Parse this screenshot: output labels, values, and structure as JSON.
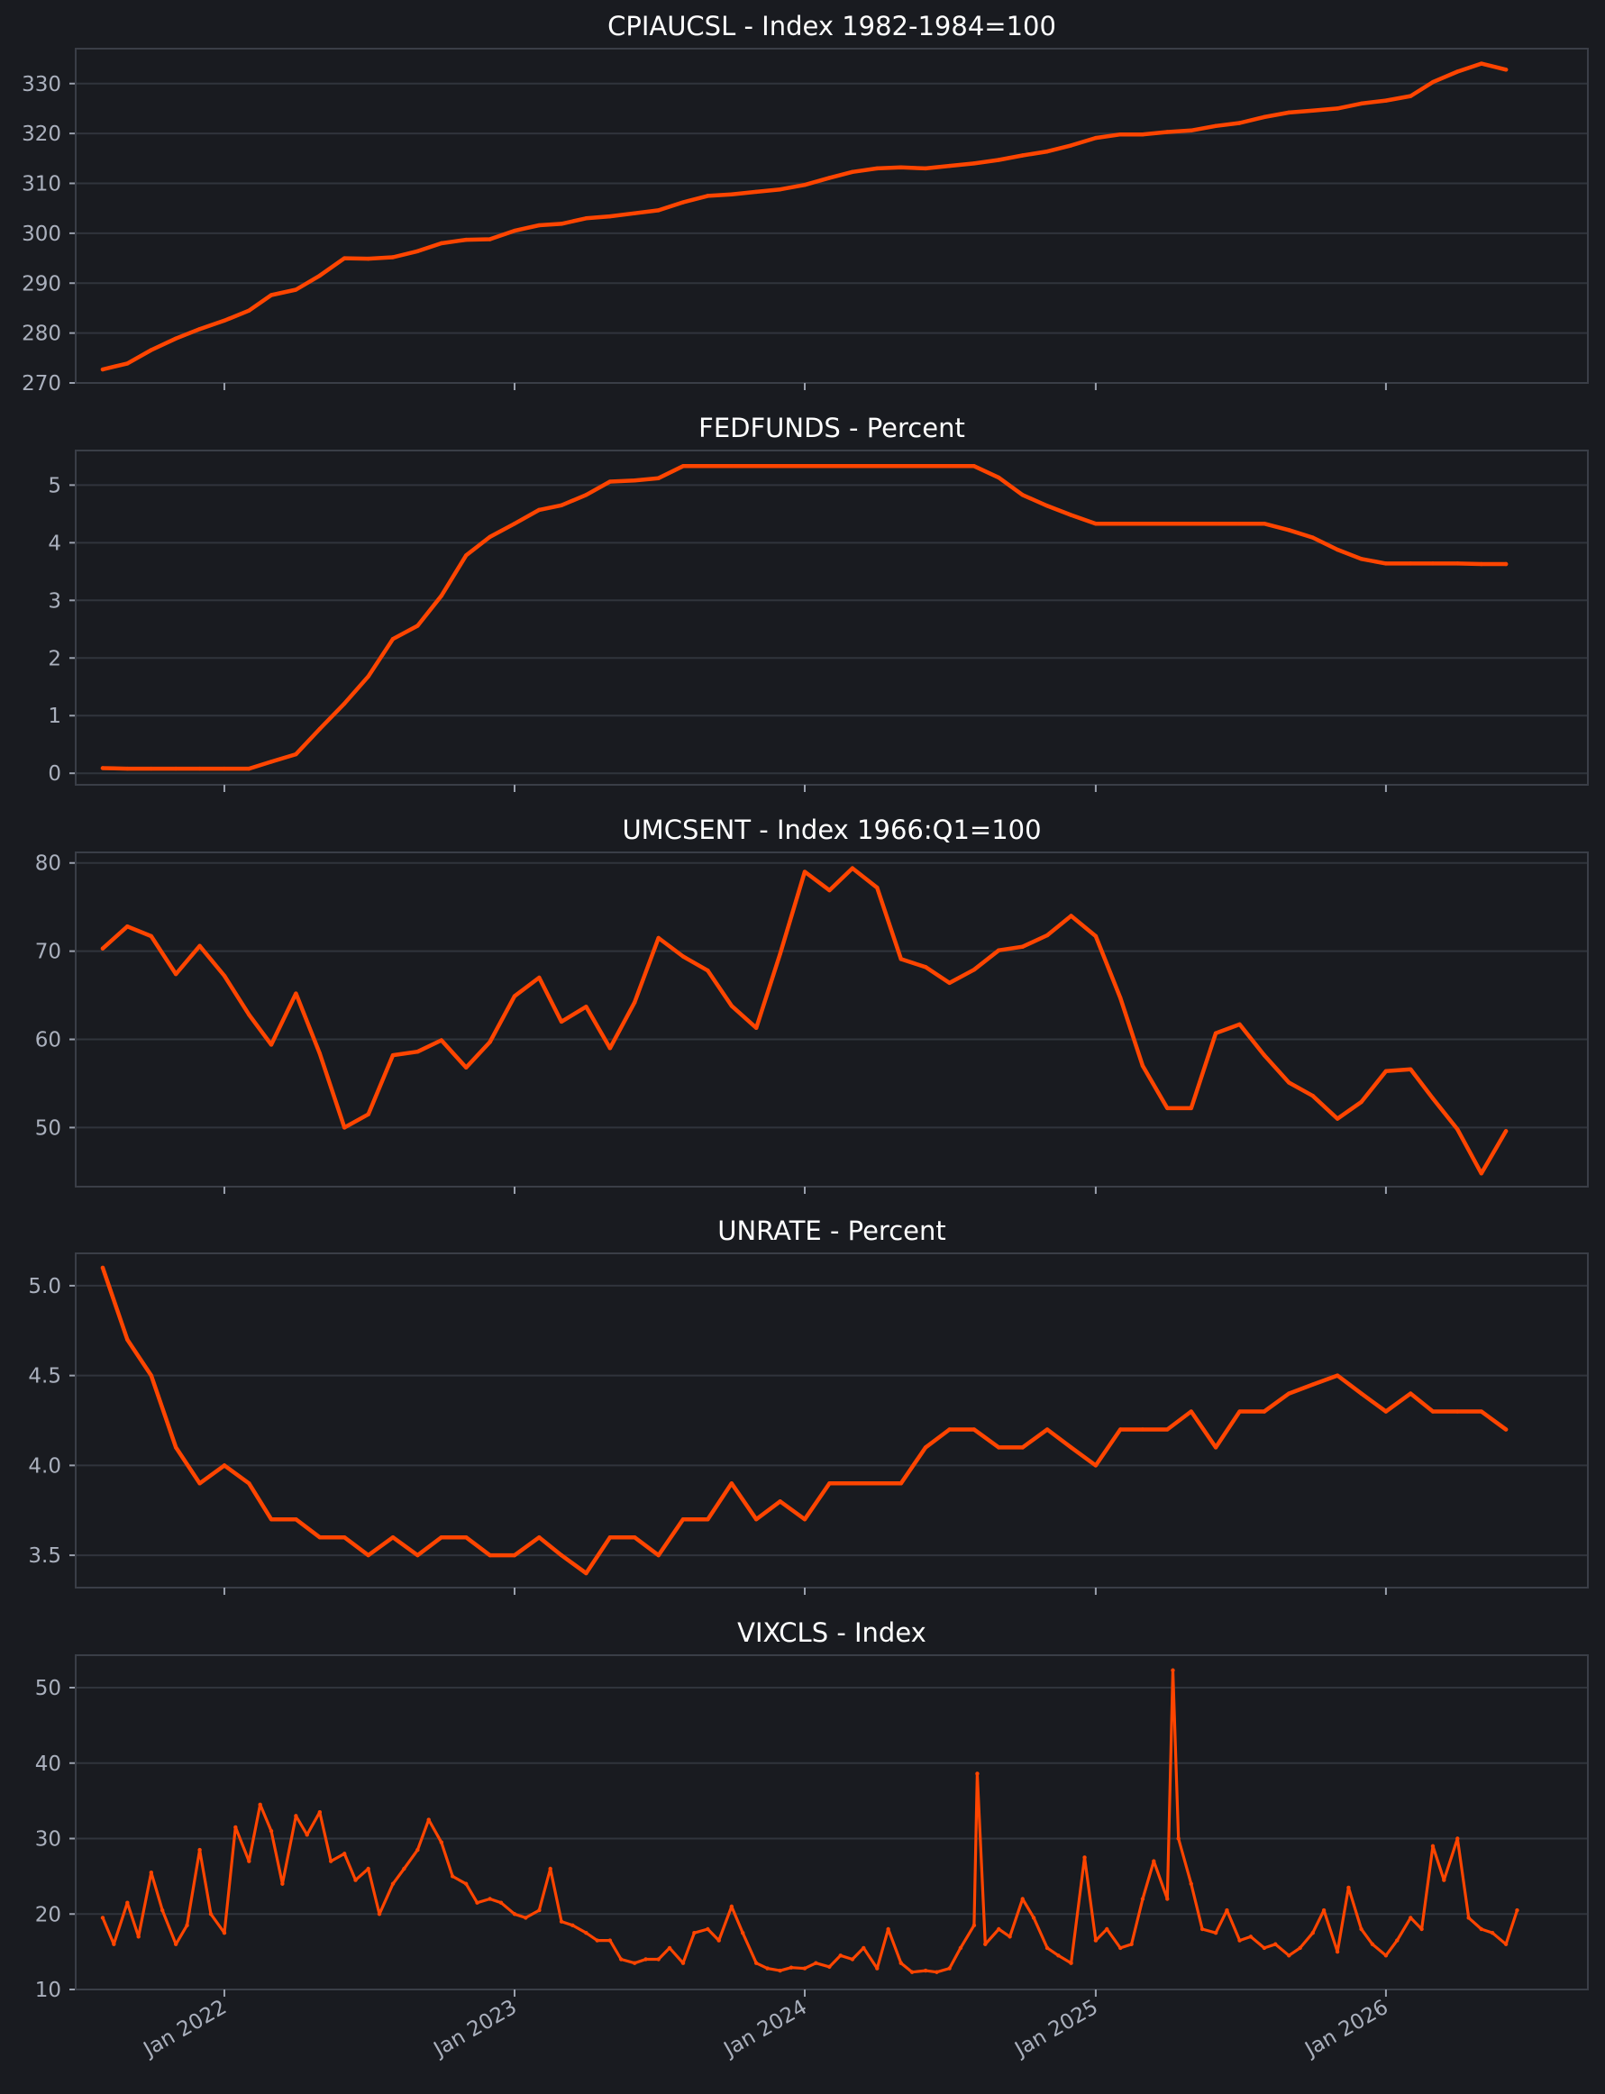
{
  "chart_data": [
    {
      "type": "line",
      "title": "CPIAUCSL - Index 1982-1984=100",
      "xlabel": "",
      "ylabel": "",
      "ylim": [
        270,
        337
      ],
      "yticks": [
        270,
        280,
        290,
        300,
        310,
        320,
        330
      ],
      "ytick_labels": [
        "270",
        "280",
        "290",
        "300",
        "310",
        "320",
        "330"
      ],
      "xticks": [
        "2022-01-01",
        "2023-01-01",
        "2024-01-01",
        "2025-01-01",
        "2026-01-01"
      ],
      "xtick_labels": [],
      "color": "#ff4500",
      "grid": true,
      "series": [
        {
          "x": [
            "2021-08-01",
            "2021-09-01",
            "2021-10-01",
            "2021-11-01",
            "2021-12-01",
            "2022-01-01",
            "2022-02-01",
            "2022-03-01",
            "2022-04-01",
            "2022-05-01",
            "2022-06-01",
            "2022-07-01",
            "2022-08-01",
            "2022-09-01",
            "2022-10-01",
            "2022-11-01",
            "2022-12-01",
            "2023-01-01",
            "2023-02-01",
            "2023-03-01",
            "2023-04-01",
            "2023-05-01",
            "2023-06-01",
            "2023-07-01",
            "2023-08-01",
            "2023-09-01",
            "2023-10-01",
            "2023-11-01",
            "2023-12-01",
            "2024-01-01",
            "2024-02-01",
            "2024-03-01",
            "2024-04-01",
            "2024-05-01",
            "2024-06-01",
            "2024-07-01",
            "2024-08-01",
            "2024-09-01",
            "2024-10-01",
            "2024-11-01",
            "2024-12-01",
            "2025-01-01",
            "2025-02-01",
            "2025-03-01",
            "2025-04-01",
            "2025-05-01",
            "2025-06-01",
            "2025-07-01",
            "2025-08-01",
            "2025-09-01",
            "2025-10-01",
            "2025-11-01",
            "2025-12-01",
            "2026-01-01",
            "2026-02-01",
            "2026-03-01",
            "2026-04-01",
            "2026-05-01",
            "2026-06-01"
          ],
          "values": [
            272.7,
            273.9,
            276.6,
            278.9,
            280.8,
            282.5,
            284.5,
            287.6,
            288.7,
            291.5,
            295.0,
            294.9,
            295.2,
            296.4,
            298.0,
            298.7,
            298.8,
            300.5,
            301.6,
            301.9,
            303.0,
            303.4,
            304.0,
            304.6,
            306.2,
            307.5,
            307.8,
            308.3,
            308.8,
            309.7,
            311.1,
            312.3,
            313.0,
            313.2,
            313.0,
            313.5,
            314.0,
            314.7,
            315.6,
            316.4,
            317.6,
            319.1,
            319.8,
            319.8,
            320.3,
            320.6,
            321.5,
            322.1,
            323.3,
            324.2,
            324.6,
            325.0,
            326.0,
            326.6,
            327.5,
            330.3,
            332.4,
            334.0,
            332.8
          ]
        }
      ]
    },
    {
      "type": "line",
      "title": "FEDFUNDS - Percent",
      "xlabel": "",
      "ylabel": "",
      "ylim": [
        -0.2,
        5.6
      ],
      "yticks": [
        0,
        1,
        2,
        3,
        4,
        5
      ],
      "ytick_labels": [
        "0",
        "1",
        "2",
        "3",
        "4",
        "5"
      ],
      "xticks": [
        "2022-01-01",
        "2023-01-01",
        "2024-01-01",
        "2025-01-01",
        "2026-01-01"
      ],
      "xtick_labels": [],
      "color": "#ff4500",
      "grid": true,
      "series": [
        {
          "x": [
            "2021-08-01",
            "2021-09-01",
            "2021-10-01",
            "2021-11-01",
            "2021-12-01",
            "2022-01-01",
            "2022-02-01",
            "2022-03-01",
            "2022-04-01",
            "2022-05-01",
            "2022-06-01",
            "2022-07-01",
            "2022-08-01",
            "2022-09-01",
            "2022-10-01",
            "2022-11-01",
            "2022-12-01",
            "2023-01-01",
            "2023-02-01",
            "2023-03-01",
            "2023-04-01",
            "2023-05-01",
            "2023-06-01",
            "2023-07-01",
            "2023-08-01",
            "2023-09-01",
            "2023-10-01",
            "2023-11-01",
            "2023-12-01",
            "2024-01-01",
            "2024-02-01",
            "2024-03-01",
            "2024-04-01",
            "2024-05-01",
            "2024-06-01",
            "2024-07-01",
            "2024-08-01",
            "2024-09-01",
            "2024-10-01",
            "2024-11-01",
            "2024-12-01",
            "2025-01-01",
            "2025-02-01",
            "2025-03-01",
            "2025-04-01",
            "2025-05-01",
            "2025-06-01",
            "2025-07-01",
            "2025-08-01",
            "2025-09-01",
            "2025-10-01",
            "2025-11-01",
            "2025-12-01",
            "2026-01-01",
            "2026-02-01",
            "2026-03-01",
            "2026-04-01",
            "2026-05-01",
            "2026-06-01"
          ],
          "values": [
            0.09,
            0.08,
            0.08,
            0.08,
            0.08,
            0.08,
            0.08,
            0.2,
            0.33,
            0.77,
            1.21,
            1.68,
            2.33,
            2.56,
            3.08,
            3.78,
            4.1,
            4.33,
            4.57,
            4.65,
            4.83,
            5.06,
            5.08,
            5.12,
            5.33,
            5.33,
            5.33,
            5.33,
            5.33,
            5.33,
            5.33,
            5.33,
            5.33,
            5.33,
            5.33,
            5.33,
            5.33,
            5.13,
            4.83,
            4.64,
            4.48,
            4.33,
            4.33,
            4.33,
            4.33,
            4.33,
            4.33,
            4.33,
            4.33,
            4.22,
            4.09,
            3.88,
            3.72,
            3.64,
            3.64,
            3.64,
            3.64,
            3.63,
            3.63
          ]
        }
      ]
    },
    {
      "type": "line",
      "title": "UMCSENT - Index 1966:Q1=100",
      "xlabel": "",
      "ylabel": "",
      "ylim": [
        43.3,
        81.2
      ],
      "yticks": [
        50,
        60,
        70,
        80
      ],
      "ytick_labels": [
        "50",
        "60",
        "70",
        "80"
      ],
      "xticks": [
        "2022-01-01",
        "2023-01-01",
        "2024-01-01",
        "2025-01-01",
        "2026-01-01"
      ],
      "xtick_labels": [],
      "color": "#ff4500",
      "grid": true,
      "series": [
        {
          "x": [
            "2021-08-01",
            "2021-09-01",
            "2021-10-01",
            "2021-11-01",
            "2021-12-01",
            "2022-01-01",
            "2022-02-01",
            "2022-03-01",
            "2022-04-01",
            "2022-05-01",
            "2022-06-01",
            "2022-07-01",
            "2022-08-01",
            "2022-09-01",
            "2022-10-01",
            "2022-11-01",
            "2022-12-01",
            "2023-01-01",
            "2023-02-01",
            "2023-03-01",
            "2023-04-01",
            "2023-05-01",
            "2023-06-01",
            "2023-07-01",
            "2023-08-01",
            "2023-09-01",
            "2023-10-01",
            "2023-11-01",
            "2023-12-01",
            "2024-01-01",
            "2024-02-01",
            "2024-03-01",
            "2024-04-01",
            "2024-05-01",
            "2024-06-01",
            "2024-07-01",
            "2024-08-01",
            "2024-09-01",
            "2024-10-01",
            "2024-11-01",
            "2024-12-01",
            "2025-01-01",
            "2025-02-01",
            "2025-03-01",
            "2025-04-01",
            "2025-05-01",
            "2025-06-01",
            "2025-07-01",
            "2025-08-01",
            "2025-09-01",
            "2025-10-01",
            "2025-11-01",
            "2025-12-01",
            "2026-01-01",
            "2026-02-01",
            "2026-03-01",
            "2026-04-01",
            "2026-05-01",
            "2026-06-01"
          ],
          "values": [
            70.3,
            72.8,
            71.7,
            67.4,
            70.6,
            67.2,
            62.8,
            59.4,
            65.2,
            58.4,
            50.0,
            51.5,
            58.2,
            58.6,
            59.9,
            56.8,
            59.7,
            64.9,
            67.0,
            62.0,
            63.7,
            59.0,
            64.2,
            71.5,
            69.4,
            67.8,
            63.8,
            61.3,
            69.7,
            79.0,
            76.9,
            79.4,
            77.2,
            69.1,
            68.2,
            66.4,
            67.9,
            70.1,
            70.5,
            71.8,
            74.0,
            71.7,
            64.7,
            57.0,
            52.2,
            52.2,
            60.7,
            61.7,
            58.2,
            55.1,
            53.6,
            51.0,
            52.9,
            56.4,
            56.6,
            53.3,
            49.8,
            44.8,
            49.6
          ]
        }
      ]
    },
    {
      "type": "line",
      "title": "UNRATE - Percent",
      "xlabel": "",
      "ylabel": "",
      "ylim": [
        3.32,
        5.18
      ],
      "yticks": [
        3.5,
        4.0,
        4.5,
        5.0
      ],
      "ytick_labels": [
        "3.5",
        "4.0",
        "4.5",
        "5.0"
      ],
      "xticks": [
        "2022-01-01",
        "2023-01-01",
        "2024-01-01",
        "2025-01-01",
        "2026-01-01"
      ],
      "xtick_labels": [],
      "color": "#ff4500",
      "grid": true,
      "series": [
        {
          "x": [
            "2021-08-01",
            "2021-09-01",
            "2021-10-01",
            "2021-11-01",
            "2021-12-01",
            "2022-01-01",
            "2022-02-01",
            "2022-03-01",
            "2022-04-01",
            "2022-05-01",
            "2022-06-01",
            "2022-07-01",
            "2022-08-01",
            "2022-09-01",
            "2022-10-01",
            "2022-11-01",
            "2022-12-01",
            "2023-01-01",
            "2023-02-01",
            "2023-03-01",
            "2023-04-01",
            "2023-05-01",
            "2023-06-01",
            "2023-07-01",
            "2023-08-01",
            "2023-09-01",
            "2023-10-01",
            "2023-11-01",
            "2023-12-01",
            "2024-01-01",
            "2024-02-01",
            "2024-03-01",
            "2024-04-01",
            "2024-05-01",
            "2024-06-01",
            "2024-07-01",
            "2024-08-01",
            "2024-09-01",
            "2024-10-01",
            "2024-11-01",
            "2024-12-01",
            "2025-01-01",
            "2025-02-01",
            "2025-03-01",
            "2025-04-01",
            "2025-05-01",
            "2025-06-01",
            "2025-07-01",
            "2025-08-01",
            "2025-09-01",
            "2025-10-01",
            "2025-11-01",
            "2025-12-01",
            "2026-01-01",
            "2026-02-01",
            "2026-03-01",
            "2026-04-01",
            "2026-05-01",
            "2026-06-01"
          ],
          "values": [
            5.1,
            4.7,
            4.5,
            4.1,
            3.9,
            4.0,
            3.9,
            3.7,
            3.7,
            3.6,
            3.6,
            3.5,
            3.6,
            3.5,
            3.6,
            3.6,
            3.5,
            3.5,
            3.6,
            3.5,
            3.4,
            3.6,
            3.6,
            3.5,
            3.7,
            3.7,
            3.9,
            3.7,
            3.8,
            3.7,
            3.9,
            3.9,
            3.9,
            3.9,
            4.1,
            4.2,
            4.2,
            4.1,
            4.1,
            4.2,
            4.1,
            4.0,
            4.2,
            4.2,
            4.2,
            4.3,
            4.1,
            4.3,
            4.3,
            4.4,
            4.45,
            4.5,
            4.4,
            4.3,
            4.4,
            4.3,
            4.3,
            4.3,
            4.2
          ]
        }
      ]
    },
    {
      "type": "line",
      "title": "VIXCLS - Index",
      "xlabel": "",
      "ylabel": "",
      "ylim": [
        10,
        54.3
      ],
      "yticks": [
        10,
        20,
        30,
        40,
        50
      ],
      "ytick_labels": [
        "10",
        "20",
        "30",
        "40",
        "50"
      ],
      "xticks": [
        "2022-01-01",
        "2023-01-01",
        "2024-01-01",
        "2025-01-01",
        "2026-01-01"
      ],
      "xtick_labels": [
        "Jan 2022",
        "Jan 2023",
        "Jan 2024",
        "Jan 2025",
        "Jan 2026"
      ],
      "color": "#ff4500",
      "grid": true,
      "series": [
        {
          "x": [
            "2021-08-01",
            "2021-08-15",
            "2021-09-01",
            "2021-09-15",
            "2021-10-01",
            "2021-10-15",
            "2021-11-01",
            "2021-11-15",
            "2021-12-01",
            "2021-12-15",
            "2022-01-01",
            "2022-01-15",
            "2022-02-01",
            "2022-02-15",
            "2022-03-01",
            "2022-03-15",
            "2022-04-01",
            "2022-04-15",
            "2022-05-01",
            "2022-05-15",
            "2022-06-01",
            "2022-06-15",
            "2022-07-01",
            "2022-07-15",
            "2022-08-01",
            "2022-08-15",
            "2022-09-01",
            "2022-09-15",
            "2022-10-01",
            "2022-10-15",
            "2022-11-01",
            "2022-11-15",
            "2022-12-01",
            "2022-12-15",
            "2023-01-01",
            "2023-01-15",
            "2023-02-01",
            "2023-02-15",
            "2023-03-01",
            "2023-03-15",
            "2023-04-01",
            "2023-04-15",
            "2023-05-01",
            "2023-05-15",
            "2023-06-01",
            "2023-06-15",
            "2023-07-01",
            "2023-07-15",
            "2023-08-01",
            "2023-08-15",
            "2023-09-01",
            "2023-09-15",
            "2023-10-01",
            "2023-10-15",
            "2023-11-01",
            "2023-11-15",
            "2023-12-01",
            "2023-12-15",
            "2024-01-01",
            "2024-01-15",
            "2024-02-01",
            "2024-02-15",
            "2024-03-01",
            "2024-03-15",
            "2024-04-01",
            "2024-04-15",
            "2024-05-01",
            "2024-05-15",
            "2024-06-01",
            "2024-06-15",
            "2024-07-01",
            "2024-07-15",
            "2024-08-01",
            "2024-08-05",
            "2024-08-15",
            "2024-09-01",
            "2024-09-15",
            "2024-10-01",
            "2024-10-15",
            "2024-11-01",
            "2024-11-15",
            "2024-12-01",
            "2024-12-18",
            "2025-01-01",
            "2025-01-15",
            "2025-02-01",
            "2025-02-15",
            "2025-03-01",
            "2025-03-15",
            "2025-04-01",
            "2025-04-08",
            "2025-04-15",
            "2025-05-01",
            "2025-05-15",
            "2025-06-01",
            "2025-06-15",
            "2025-07-01",
            "2025-07-15",
            "2025-08-01",
            "2025-08-15",
            "2025-09-01",
            "2025-09-15",
            "2025-10-01",
            "2025-10-15",
            "2025-11-01",
            "2025-11-15",
            "2025-12-01",
            "2025-12-15",
            "2026-01-01",
            "2026-01-15",
            "2026-02-01",
            "2026-02-15",
            "2026-03-01",
            "2026-03-15",
            "2026-04-01",
            "2026-04-15",
            "2026-05-01",
            "2026-05-15",
            "2026-06-01",
            "2026-06-15"
          ],
          "values": [
            19.5,
            16.0,
            21.5,
            17.0,
            25.5,
            20.5,
            16.0,
            18.5,
            28.5,
            20.0,
            17.5,
            31.5,
            27.0,
            34.5,
            31.0,
            24.0,
            33.0,
            30.5,
            33.5,
            27.0,
            28.0,
            24.5,
            26.0,
            20.0,
            24.0,
            26.0,
            28.5,
            32.5,
            29.5,
            25.0,
            24.0,
            21.5,
            22.0,
            21.5,
            20.0,
            19.5,
            20.5,
            26.0,
            19.0,
            18.5,
            17.5,
            16.5,
            16.5,
            14.0,
            13.5,
            14.0,
            14.0,
            15.5,
            13.5,
            17.5,
            18.0,
            16.5,
            21.0,
            17.5,
            13.5,
            12.8,
            12.5,
            12.9,
            12.8,
            13.5,
            13.0,
            14.5,
            14.0,
            15.5,
            12.8,
            18.0,
            13.5,
            12.3,
            12.5,
            12.3,
            12.8,
            15.5,
            18.5,
            38.6,
            16.0,
            18.0,
            17.0,
            22.0,
            19.5,
            15.5,
            14.5,
            13.5,
            27.5,
            16.5,
            18.0,
            15.5,
            16.0,
            22.0,
            27.0,
            22.0,
            52.3,
            30.0,
            24.0,
            18.0,
            17.5,
            20.5,
            16.5,
            17.0,
            15.5,
            16.0,
            14.5,
            15.5,
            17.5,
            20.5,
            15.0,
            23.5,
            18.0,
            16.0,
            14.5,
            16.5,
            19.5,
            18.0,
            29.0,
            24.5,
            30.0,
            19.5,
            18.0,
            17.5,
            16.0,
            20.5
          ]
        }
      ]
    }
  ]
}
